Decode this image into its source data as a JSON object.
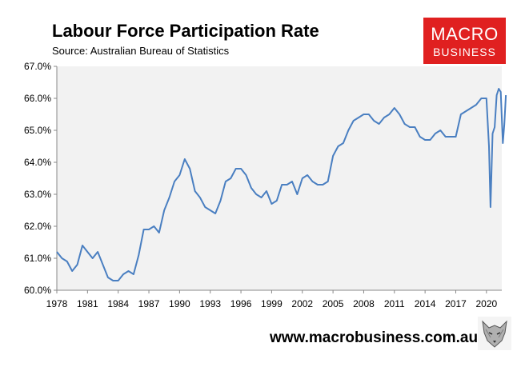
{
  "header": {
    "title": "Labour Force Participation Rate",
    "subtitle": "Source: Australian Bureau of Statistics"
  },
  "logo": {
    "line1": "MACRO",
    "line2": "BUSINESS"
  },
  "footer": {
    "website": "www.macrobusiness.com.au",
    "icon": "wolf-logo-icon"
  },
  "colors": {
    "line": "#4a7fc1",
    "plot_bg": "#f2f2f2",
    "logo_bg": "#e02020"
  },
  "chart_data": {
    "type": "line",
    "title": "Labour Force Participation Rate",
    "xlabel": "",
    "ylabel": "",
    "xlim": [
      1978,
      2021.5
    ],
    "ylim": [
      60.0,
      67.0
    ],
    "x_ticks": [
      "1978",
      "1981",
      "1984",
      "1987",
      "1990",
      "1993",
      "1996",
      "1999",
      "2002",
      "2005",
      "2008",
      "2011",
      "2014",
      "2017",
      "2020"
    ],
    "y_ticks": [
      "60.0%",
      "61.0%",
      "62.0%",
      "63.0%",
      "64.0%",
      "65.0%",
      "66.0%",
      "67.0%"
    ],
    "grid": false,
    "series": [
      {
        "x": [
          1978.0,
          1978.5,
          1979.0,
          1979.5,
          1980.0,
          1980.5,
          1981.0,
          1981.5,
          1982.0,
          1982.5,
          1983.0,
          1983.5,
          1984.0,
          1984.5,
          1985.0,
          1985.5,
          1986.0,
          1986.5,
          1987.0,
          1987.5,
          1988.0,
          1988.5,
          1989.0,
          1989.5,
          1990.0,
          1990.5,
          1991.0,
          1991.5,
          1992.0,
          1992.5,
          1993.0,
          1993.5,
          1994.0,
          1994.5,
          1995.0,
          1995.5,
          1996.0,
          1996.5,
          1997.0,
          1997.5,
          1998.0,
          1998.5,
          1999.0,
          1999.5,
          2000.0,
          2000.5,
          2001.0,
          2001.5,
          2002.0,
          2002.5,
          2003.0,
          2003.5,
          2004.0,
          2004.5,
          2005.0,
          2005.5,
          2006.0,
          2006.5,
          2007.0,
          2007.5,
          2008.0,
          2008.5,
          2009.0,
          2009.5,
          2010.0,
          2010.5,
          2011.0,
          2011.5,
          2012.0,
          2012.5,
          2013.0,
          2013.5,
          2014.0,
          2014.5,
          2015.0,
          2015.5,
          2016.0,
          2016.5,
          2017.0,
          2017.5,
          2018.0,
          2018.5,
          2019.0,
          2019.5,
          2020.0,
          2020.25,
          2020.4,
          2020.6,
          2020.8,
          2021.0,
          2021.2,
          2021.4,
          2021.6,
          2021.75,
          2021.9
        ],
        "values": [
          61.2,
          61.0,
          60.9,
          60.6,
          60.8,
          61.4,
          61.2,
          61.0,
          61.2,
          60.8,
          60.4,
          60.3,
          60.3,
          60.5,
          60.6,
          60.5,
          61.1,
          61.9,
          61.9,
          62.0,
          61.8,
          62.5,
          62.9,
          63.4,
          63.6,
          64.1,
          63.8,
          63.1,
          62.9,
          62.6,
          62.5,
          62.4,
          62.8,
          63.4,
          63.5,
          63.8,
          63.8,
          63.6,
          63.2,
          63.0,
          62.9,
          63.1,
          62.7,
          62.8,
          63.3,
          63.3,
          63.4,
          63.0,
          63.5,
          63.6,
          63.4,
          63.3,
          63.3,
          63.4,
          64.2,
          64.5,
          64.6,
          65.0,
          65.3,
          65.4,
          65.5,
          65.5,
          65.3,
          65.2,
          65.4,
          65.5,
          65.7,
          65.5,
          65.2,
          65.1,
          65.1,
          64.8,
          64.7,
          64.7,
          64.9,
          65.0,
          64.8,
          64.8,
          64.8,
          65.5,
          65.6,
          65.7,
          65.8,
          66.0,
          66.0,
          64.5,
          62.6,
          64.9,
          65.1,
          66.1,
          66.3,
          66.2,
          64.6,
          65.2,
          66.1
        ]
      }
    ]
  }
}
